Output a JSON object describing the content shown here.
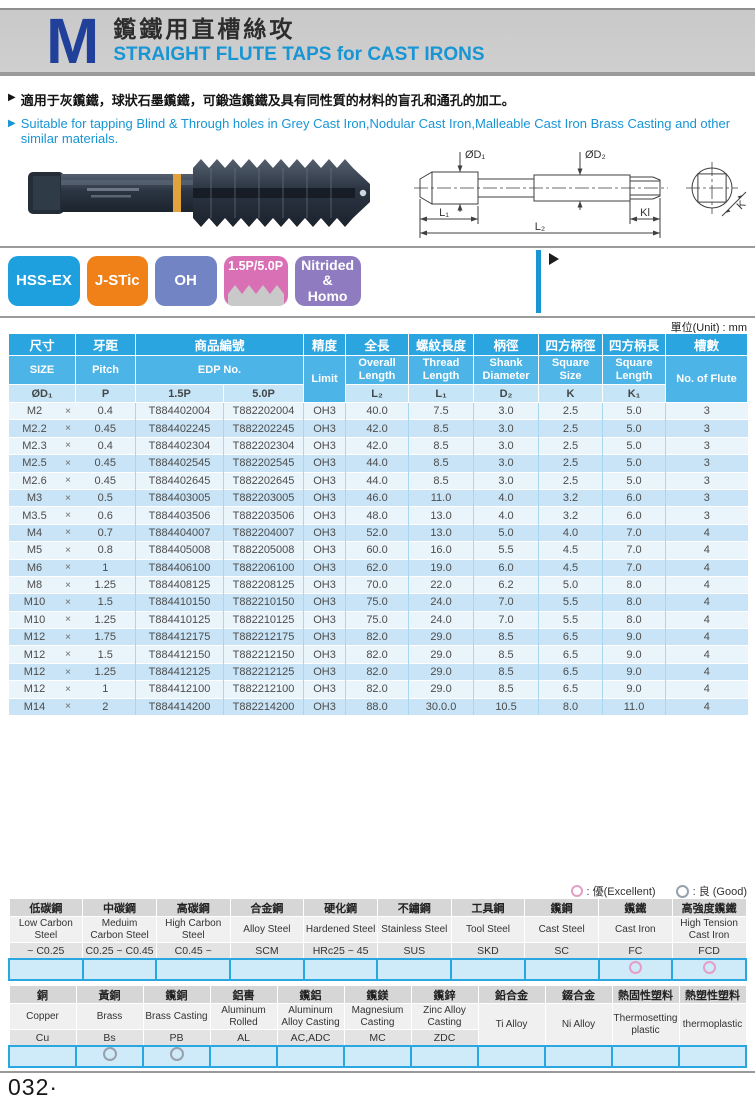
{
  "page": {
    "page_number": "032·",
    "unit_note": "單位(Unit) : mm"
  },
  "header": {
    "letter": "M",
    "title_zh": "鑬鐵用直槽絲攻",
    "title_en": "STRAIGHT FLUTE TAPS for CAST IRONS",
    "accent_blue": "#1795d4",
    "letter_color": "#21409a"
  },
  "intro": {
    "marker": "▶",
    "line_zh": "適用于灰鑬鐵，球狀石墨鑬鐵，可鍛造鑬鐵及具有同性質的材料的盲孔和通孔的加工。",
    "line_en": "Suitable for tapping Blind & Through holes in Grey Cast Iron,Nodular Cast Iron,Malleable Cast Iron Brass Casting and other similar materials."
  },
  "badges": [
    {
      "label": "HSS-EX",
      "color": "#1e9fde"
    },
    {
      "label": "J-STic",
      "color": "#f08119"
    },
    {
      "label": "OH",
      "color": "#7284c4"
    },
    {
      "label": "1.5P/5.0P",
      "color": "#d96fb4"
    },
    {
      "label": "Nitrided & Homo",
      "color": "#8f7bbf"
    }
  ],
  "diagram": {
    "d1": "ØD₁",
    "d2": "ØD₂",
    "l1": "L₁",
    "l2": "L₂",
    "kl": "Kl",
    "k": "K"
  },
  "spec_table": {
    "headers_zh": [
      "尺寸",
      "牙距",
      "商品編號",
      "精度",
      "全長",
      "螺紋長度",
      "柄徑",
      "四方柄徑",
      "四方柄長",
      "槽數"
    ],
    "headers_en": {
      "size": "SIZE",
      "pitch": "Pitch",
      "edp": "EDP No.",
      "limit": "Limit",
      "overall": "Overall Length",
      "thread": "Thread Length",
      "shank": "Shank Diameter",
      "square_size": "Square Size",
      "square_length": "Square Length",
      "flutes": "No. of Flute"
    },
    "symbols": {
      "size": "ØD₁",
      "pitch": "P",
      "edp15": "1.5P",
      "edp50": "5.0P",
      "overall": "L₂",
      "thread": "L₁",
      "shank": "D₂",
      "square_size": "K",
      "square_length": "K₁"
    },
    "cross": "×",
    "rows": [
      [
        "M2",
        "0.4",
        "T884402004",
        "T882202004",
        "OH3",
        "40.0",
        "7.5",
        "3.0",
        "2.5",
        "5.0",
        "3"
      ],
      [
        "M2.2",
        "0.45",
        "T884402245",
        "T882202245",
        "OH3",
        "42.0",
        "8.5",
        "3.0",
        "2.5",
        "5.0",
        "3"
      ],
      [
        "M2.3",
        "0.4",
        "T884402304",
        "T882202304",
        "OH3",
        "42.0",
        "8.5",
        "3.0",
        "2.5",
        "5.0",
        "3"
      ],
      [
        "M2.5",
        "0.45",
        "T884402545",
        "T882202545",
        "OH3",
        "44.0",
        "8.5",
        "3.0",
        "2.5",
        "5.0",
        "3"
      ],
      [
        "M2.6",
        "0.45",
        "T884402645",
        "T882202645",
        "OH3",
        "44.0",
        "8.5",
        "3.0",
        "2.5",
        "5.0",
        "3"
      ],
      [
        "M3",
        "0.5",
        "T884403005",
        "T882203005",
        "OH3",
        "46.0",
        "11.0",
        "4.0",
        "3.2",
        "6.0",
        "3"
      ],
      [
        "M3.5",
        "0.6",
        "T884403506",
        "T882203506",
        "OH3",
        "48.0",
        "13.0",
        "4.0",
        "3.2",
        "6.0",
        "3"
      ],
      [
        "M4",
        "0.7",
        "T884404007",
        "T882204007",
        "OH3",
        "52.0",
        "13.0",
        "5.0",
        "4.0",
        "7.0",
        "4"
      ],
      [
        "M5",
        "0.8",
        "T884405008",
        "T882205008",
        "OH3",
        "60.0",
        "16.0",
        "5.5",
        "4.5",
        "7.0",
        "4"
      ],
      [
        "M6",
        "1",
        "T884406100",
        "T882206100",
        "OH3",
        "62.0",
        "19.0",
        "6.0",
        "4.5",
        "7.0",
        "4"
      ],
      [
        "M8",
        "1.25",
        "T884408125",
        "T882208125",
        "OH3",
        "70.0",
        "22.0",
        "6.2",
        "5.0",
        "8.0",
        "4"
      ],
      [
        "M10",
        "1.5",
        "T884410150",
        "T882210150",
        "OH3",
        "75.0",
        "24.0",
        "7.0",
        "5.5",
        "8.0",
        "4"
      ],
      [
        "M10",
        "1.25",
        "T884410125",
        "T882210125",
        "OH3",
        "75.0",
        "24.0",
        "7.0",
        "5.5",
        "8.0",
        "4"
      ],
      [
        "M12",
        "1.75",
        "T884412175",
        "T882212175",
        "OH3",
        "82.0",
        "29.0",
        "8.5",
        "6.5",
        "9.0",
        "4"
      ],
      [
        "M12",
        "1.5",
        "T884412150",
        "T882212150",
        "OH3",
        "82.0",
        "29.0",
        "8.5",
        "6.5",
        "9.0",
        "4"
      ],
      [
        "M12",
        "1.25",
        "T884412125",
        "T882212125",
        "OH3",
        "82.0",
        "29.0",
        "8.5",
        "6.5",
        "9.0",
        "4"
      ],
      [
        "M12",
        "1",
        "T884412100",
        "T882212100",
        "OH3",
        "82.0",
        "29.0",
        "8.5",
        "6.5",
        "9.0",
        "4"
      ],
      [
        "M14",
        "2",
        "T884414200",
        "T882214200",
        "OH3",
        "88.0",
        "30.0.0",
        "10.5",
        "8.0",
        "11.0",
        "4"
      ]
    ]
  },
  "legend": {
    "excellent_label": ": 優(Excellent)",
    "good_label": ": 良 (Good)",
    "excellent_color": "#e59fc6",
    "good_color": "#97a1ab"
  },
  "materials_primary": [
    {
      "zh": "低碳鋼",
      "en": "Low Carbon Steel",
      "code": "~ C0.25",
      "rating": ""
    },
    {
      "zh": "中碳鋼",
      "en": "Meduim Carbon Steel",
      "code": "C0.25 ~ C0.45",
      "rating": ""
    },
    {
      "zh": "高碳鋼",
      "en": "High Carbon Steel",
      "code": "C0.45 ~",
      "rating": ""
    },
    {
      "zh": "合金鋼",
      "en": "Alloy Steel",
      "code": "SCM",
      "rating": ""
    },
    {
      "zh": "硬化鋼",
      "en": "Hardened Steel",
      "code": "HRc25 ~ 45",
      "rating": ""
    },
    {
      "zh": "不鏽鋼",
      "en": "Stainless Steel",
      "code": "SUS",
      "rating": ""
    },
    {
      "zh": "工具鋼",
      "en": "Tool Steel",
      "code": "SKD",
      "rating": ""
    },
    {
      "zh": "鑬鋼",
      "en": "Cast Steel",
      "code": "SC",
      "rating": ""
    },
    {
      "zh": "鑬鐵",
      "en": "Cast Iron",
      "code": "FC",
      "rating": "excellent"
    },
    {
      "zh": "高強度鑬鐵",
      "en": "High Tension Cast Iron",
      "code": "FCD",
      "rating": "excellent"
    }
  ],
  "materials_secondary": [
    {
      "zh": "銅",
      "en": "Copper",
      "code": "Cu",
      "rating": ""
    },
    {
      "zh": "黃銅",
      "en": "Brass",
      "code": "Bs",
      "rating": "good"
    },
    {
      "zh": "鑬銅",
      "en": "Brass Casting",
      "code": "PB",
      "rating": "good"
    },
    {
      "zh": "鋁軎",
      "en": "Aluminum Rolled",
      "code": "AL",
      "rating": ""
    },
    {
      "zh": "鑬鋁",
      "en": "Aluminum Alloy Casting",
      "code": "AC,ADC",
      "rating": ""
    },
    {
      "zh": "鑬鎂",
      "en": "Magnesium Casting",
      "code": "MC",
      "rating": ""
    },
    {
      "zh": "鑬鋅",
      "en": "Zinc Alloy Casting",
      "code": "ZDC",
      "rating": ""
    },
    {
      "zh": "鉛合金",
      "en": "Ti Alloy",
      "code": null,
      "rating": ""
    },
    {
      "zh": "錣合金",
      "en": "Ni Alloy",
      "code": null,
      "rating": ""
    },
    {
      "zh": "熱固性塑料",
      "en": "Thermosetting plastic",
      "code": null,
      "rating": ""
    },
    {
      "zh": "熱塑性塑料",
      "en": "thermoplastic",
      "code": null,
      "rating": ""
    }
  ]
}
